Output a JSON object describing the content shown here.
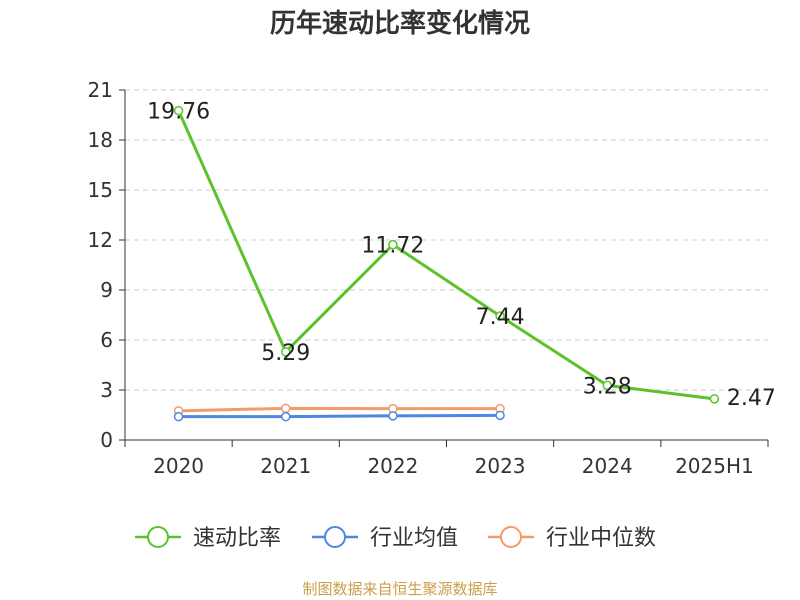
{
  "chart_data": {
    "type": "line",
    "title": "历年速动比率变化情况",
    "categories": [
      "2020",
      "2021",
      "2022",
      "2023",
      "2024",
      "2025H1"
    ],
    "ylim": [
      0,
      21
    ],
    "yticks": [
      0,
      3,
      6,
      9,
      12,
      15,
      18,
      21
    ],
    "grid": true,
    "legend_position": "bottom",
    "series": [
      {
        "name": "速动比率",
        "color": "#5cc22a",
        "values": [
          19.76,
          5.29,
          11.72,
          7.44,
          3.28,
          2.47
        ],
        "labels": [
          "19.76",
          "5.29",
          "11.72",
          "7.44",
          "3.28",
          "2.47"
        ]
      },
      {
        "name": "行业均值",
        "color": "#4f86e0",
        "values": [
          1.4,
          1.4,
          1.45,
          1.48,
          null,
          null
        ]
      },
      {
        "name": "行业中位数",
        "color": "#f59a6b",
        "values": [
          1.75,
          1.9,
          1.88,
          1.88,
          null,
          null
        ]
      }
    ]
  },
  "source": "制图数据来自恒生聚源数据库"
}
